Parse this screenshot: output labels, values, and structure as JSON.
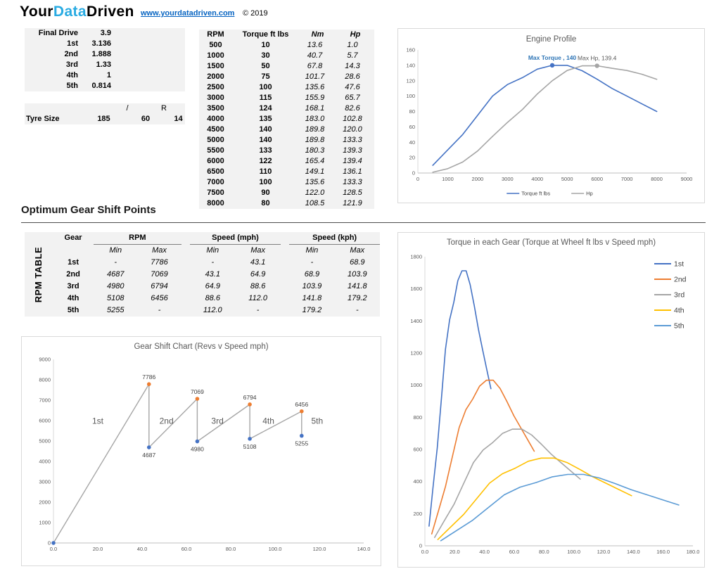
{
  "header": {
    "logo_your": "Your",
    "logo_data": "Data",
    "logo_driven": "Driven",
    "url": "www.yourdatadriven.com",
    "copyright": "© 2019"
  },
  "ratios_table": {
    "rows": [
      {
        "label": "Final Drive",
        "value": "3.9"
      },
      {
        "label": "1st",
        "value": "3.136"
      },
      {
        "label": "2nd",
        "value": "1.888"
      },
      {
        "label": "3rd",
        "value": "1.33"
      },
      {
        "label": "4th",
        "value": "1"
      },
      {
        "label": "5th",
        "value": "0.814"
      }
    ]
  },
  "tyre_table": {
    "label": "Tyre Size",
    "separator": "/",
    "r_label": "R",
    "width": "185",
    "profile": "60",
    "rim": "14"
  },
  "rpm_table": {
    "headers": [
      "RPM",
      "Torque ft lbs",
      "Nm",
      "Hp"
    ],
    "rows": [
      [
        "500",
        "10",
        "13.6",
        "1.0"
      ],
      [
        "1000",
        "30",
        "40.7",
        "5.7"
      ],
      [
        "1500",
        "50",
        "67.8",
        "14.3"
      ],
      [
        "2000",
        "75",
        "101.7",
        "28.6"
      ],
      [
        "2500",
        "100",
        "135.6",
        "47.6"
      ],
      [
        "3000",
        "115",
        "155.9",
        "65.7"
      ],
      [
        "3500",
        "124",
        "168.1",
        "82.6"
      ],
      [
        "4000",
        "135",
        "183.0",
        "102.8"
      ],
      [
        "4500",
        "140",
        "189.8",
        "120.0"
      ],
      [
        "5000",
        "140",
        "189.8",
        "133.3"
      ],
      [
        "5500",
        "133",
        "180.3",
        "139.3"
      ],
      [
        "6000",
        "122",
        "165.4",
        "139.4"
      ],
      [
        "6500",
        "110",
        "149.1",
        "136.1"
      ],
      [
        "7000",
        "100",
        "135.6",
        "133.3"
      ],
      [
        "7500",
        "90",
        "122.0",
        "128.5"
      ],
      [
        "8000",
        "80",
        "108.5",
        "121.9"
      ]
    ]
  },
  "section_title": "Optimum Gear Shift Points",
  "shift_table": {
    "side_label": "RPM TABLE",
    "group_headers": [
      "Gear",
      "RPM",
      "Speed (mph)",
      "Speed (kph)"
    ],
    "sub_headers": [
      "Min",
      "Max",
      "Min",
      "Max",
      "Min",
      "Max"
    ],
    "rows": [
      [
        "1st",
        "-",
        "7786",
        "-",
        "43.1",
        "-",
        "68.9"
      ],
      [
        "2nd",
        "4687",
        "7069",
        "43.1",
        "64.9",
        "68.9",
        "103.9"
      ],
      [
        "3rd",
        "4980",
        "6794",
        "64.9",
        "88.6",
        "103.9",
        "141.8"
      ],
      [
        "4th",
        "5108",
        "6456",
        "88.6",
        "112.0",
        "141.8",
        "179.2"
      ],
      [
        "5th",
        "5255",
        "-",
        "112.0",
        "-",
        "179.2",
        "-"
      ]
    ]
  },
  "chart_data": [
    {
      "id": "engine_profile",
      "type": "line",
      "title": "Engine Profile",
      "xlabel": "",
      "ylabel": "",
      "xlim": [
        0,
        9000
      ],
      "ylim": [
        0,
        160
      ],
      "x_tick_step": 1000,
      "y_tick_step": 20,
      "legend": "bottom",
      "x": [
        500,
        1000,
        1500,
        2000,
        2500,
        3000,
        3500,
        4000,
        4500,
        5000,
        5500,
        6000,
        6500,
        7000,
        7500,
        8000
      ],
      "series": [
        {
          "name": "Torque ft lbs",
          "color": "#4472C4",
          "values": [
            10,
            30,
            50,
            75,
            100,
            115,
            124,
            135,
            140,
            140,
            133,
            122,
            110,
            100,
            90,
            80
          ]
        },
        {
          "name": "Hp",
          "color": "#A5A5A5",
          "values": [
            1.0,
            5.7,
            14.3,
            28.6,
            47.6,
            65.7,
            82.6,
            102.8,
            120.0,
            133.3,
            139.3,
            139.4,
            136.1,
            133.3,
            128.5,
            121.9
          ]
        }
      ],
      "annotations": [
        {
          "text": "Max Torque , 140",
          "x": 4500,
          "y": 140,
          "text_color": "#2E75B6",
          "marker_color": "#4472C4",
          "bold": true
        },
        {
          "text": "Max Hp, 139.4",
          "x": 6000,
          "y": 139.4,
          "text_color": "#595959",
          "marker_color": "#A5A5A5",
          "bold": false
        }
      ]
    },
    {
      "id": "gear_shift",
      "type": "line",
      "title": "Gear Shift Chart (Revs v Speed mph)",
      "xlim": [
        0,
        140
      ],
      "ylim": [
        0,
        9000
      ],
      "x_ticks": [
        "0.0",
        "20.0",
        "40.0",
        "60.0",
        "80.0",
        "100.0",
        "120.0",
        "140.0"
      ],
      "y_tick_step": 1000,
      "line_color": "#A6A6A6",
      "max_marker_color": "#ED7D31",
      "min_marker_color": "#4472C4",
      "points": [
        {
          "x": 0,
          "y": 0,
          "kind": "min",
          "label": ""
        },
        {
          "x": 43.1,
          "y": 7786,
          "kind": "max",
          "label": "7786"
        },
        {
          "x": 43.1,
          "y": 4687,
          "kind": "min",
          "label": "4687"
        },
        {
          "x": 64.9,
          "y": 7069,
          "kind": "max",
          "label": "7069"
        },
        {
          "x": 64.9,
          "y": 4980,
          "kind": "min",
          "label": "4980"
        },
        {
          "x": 88.6,
          "y": 6794,
          "kind": "max",
          "label": "6794"
        },
        {
          "x": 88.6,
          "y": 5108,
          "kind": "min",
          "label": "5108"
        },
        {
          "x": 112.0,
          "y": 6456,
          "kind": "max",
          "label": "6456"
        },
        {
          "x": 112.0,
          "y": 5255,
          "kind": "min",
          "label": "5255"
        }
      ],
      "gear_labels": [
        {
          "text": "1st",
          "x": 20,
          "y": 5850
        },
        {
          "text": "2nd",
          "x": 51,
          "y": 5850
        },
        {
          "text": "3rd",
          "x": 74,
          "y": 5850
        },
        {
          "text": "4th",
          "x": 97,
          "y": 5850
        },
        {
          "text": "5th",
          "x": 119,
          "y": 5850
        }
      ]
    },
    {
      "id": "torque_gears",
      "type": "line",
      "title": "Torque in each Gear (Torque at Wheel ft lbs v Speed mph)",
      "xlim": [
        0,
        180
      ],
      "ylim": [
        0,
        1800
      ],
      "x_ticks": [
        "0.0",
        "20.0",
        "40.0",
        "60.0",
        "80.0",
        "100.0",
        "120.0",
        "140.0",
        "160.0",
        "180.0"
      ],
      "y_tick_step": 200,
      "legend": "right-inside",
      "series": [
        {
          "name": "1st",
          "color": "#4472C4",
          "x": [
            2.8,
            5.5,
            8.3,
            11.1,
            13.8,
            16.6,
            19.4,
            22.1,
            24.9,
            27.7,
            30.4,
            33.2,
            36.0,
            38.7,
            41.5,
            44.3
          ],
          "values": [
            122.3,
            366.9,
            611.5,
            917.3,
            1223.0,
            1406.5,
            1516.6,
            1651.1,
            1712.3,
            1712.3,
            1626.6,
            1492.1,
            1345.3,
            1223.0,
            1100.7,
            978.4
          ]
        },
        {
          "name": "2nd",
          "color": "#ED7D31",
          "x": [
            4.6,
            9.2,
            13.8,
            18.4,
            23.0,
            27.5,
            32.1,
            36.7,
            41.3,
            45.9,
            50.5,
            55.1,
            59.7,
            64.3,
            68.9,
            73.4
          ],
          "values": [
            73.6,
            220.9,
            368.2,
            552.2,
            736.3,
            846.8,
            913.0,
            994.0,
            1030.8,
            1030.8,
            979.3,
            898.3,
            810.0,
            736.3,
            662.7,
            589.1
          ]
        },
        {
          "name": "3rd",
          "color": "#A5A5A5",
          "x": [
            6.5,
            13.0,
            19.6,
            26.1,
            32.6,
            39.1,
            45.6,
            52.2,
            58.7,
            65.2,
            71.7,
            78.2,
            84.8,
            91.3,
            97.8,
            104.3
          ],
          "values": [
            51.9,
            155.6,
            259.4,
            389.0,
            518.7,
            596.5,
            643.2,
            700.2,
            726.2,
            726.2,
            689.9,
            632.8,
            570.6,
            518.7,
            466.8,
            415.0
          ]
        },
        {
          "name": "4th",
          "color": "#FFC000",
          "x": [
            8.7,
            17.3,
            26.0,
            34.7,
            43.4,
            52.0,
            60.7,
            69.4,
            78.1,
            86.7,
            95.4,
            104.1,
            112.8,
            121.4,
            130.1,
            138.8
          ],
          "values": [
            39.0,
            117.0,
            195.0,
            292.5,
            390.0,
            448.5,
            483.6,
            526.5,
            546.0,
            546.0,
            518.7,
            475.8,
            429.0,
            390.0,
            351.0,
            312.0
          ]
        },
        {
          "name": "5th",
          "color": "#5B9BD5",
          "x": [
            10.7,
            21.3,
            32.0,
            42.6,
            53.3,
            63.9,
            74.6,
            85.3,
            95.9,
            106.6,
            117.2,
            127.9,
            138.5,
            149.2,
            159.8,
            170.5
          ],
          "values": [
            31.7,
            95.2,
            158.7,
            238.1,
            317.5,
            365.1,
            393.7,
            428.6,
            444.4,
            444.4,
            422.2,
            387.3,
            349.2,
            317.5,
            285.7,
            254.0
          ]
        }
      ]
    }
  ]
}
